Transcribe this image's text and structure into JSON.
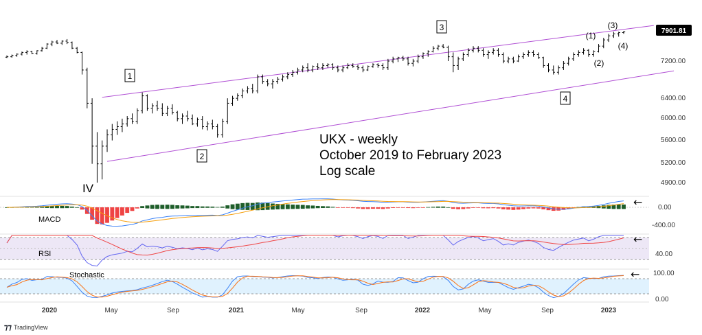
{
  "chart_data": {
    "type": "ohlc",
    "title": "",
    "price_axis": {
      "scale": "log",
      "ticks": [
        "7200.00",
        "6400.00",
        "6000.00",
        "5600.00",
        "5200.00",
        "4900.00"
      ],
      "current_price": "7901.81"
    },
    "x_axis": {
      "ticks": [
        "2020",
        "May",
        "Sep",
        "2021",
        "May",
        "Sep",
        "2022",
        "May",
        "Sep",
        "2023"
      ]
    },
    "ohlc": [
      [
        7290,
        7330,
        7270,
        7300
      ],
      [
        7300,
        7350,
        7280,
        7330
      ],
      [
        7330,
        7380,
        7300,
        7360
      ],
      [
        7360,
        7420,
        7330,
        7400
      ],
      [
        7400,
        7450,
        7350,
        7420
      ],
      [
        7420,
        7440,
        7360,
        7380
      ],
      [
        7380,
        7450,
        7350,
        7440
      ],
      [
        7440,
        7530,
        7420,
        7500
      ],
      [
        7500,
        7620,
        7480,
        7600
      ],
      [
        7600,
        7680,
        7550,
        7650
      ],
      [
        7650,
        7700,
        7600,
        7620
      ],
      [
        7620,
        7690,
        7580,
        7670
      ],
      [
        7670,
        7720,
        7600,
        7640
      ],
      [
        7640,
        7660,
        7480,
        7500
      ],
      [
        7500,
        7530,
        7380,
        7400
      ],
      [
        7400,
        7420,
        6900,
        7000
      ],
      [
        7000,
        7050,
        6200,
        6300
      ],
      [
        6300,
        6400,
        5200,
        5500
      ],
      [
        5500,
        5750,
        4900,
        5200
      ],
      [
        5200,
        5600,
        4950,
        5500
      ],
      [
        5500,
        5800,
        5400,
        5700
      ],
      [
        5700,
        5900,
        5600,
        5800
      ],
      [
        5800,
        5950,
        5700,
        5850
      ],
      [
        5850,
        6000,
        5750,
        5900
      ],
      [
        5900,
        6050,
        5850,
        6000
      ],
      [
        6000,
        6100,
        5900,
        5950
      ],
      [
        5950,
        6200,
        5900,
        6150
      ],
      [
        6150,
        6520,
        6100,
        6450
      ],
      [
        6450,
        6480,
        6150,
        6200
      ],
      [
        6200,
        6300,
        6100,
        6250
      ],
      [
        6250,
        6350,
        6150,
        6200
      ],
      [
        6200,
        6300,
        6050,
        6100
      ],
      [
        6100,
        6250,
        6050,
        6200
      ],
      [
        6200,
        6280,
        6080,
        6120
      ],
      [
        6120,
        6150,
        5950,
        6000
      ],
      [
        6000,
        6100,
        5900,
        6050
      ],
      [
        6050,
        6150,
        5950,
        6000
      ],
      [
        6000,
        6080,
        5880,
        5900
      ],
      [
        5900,
        6020,
        5850,
        5980
      ],
      [
        5980,
        6050,
        5800,
        5850
      ],
      [
        5850,
        5950,
        5780,
        5900
      ],
      [
        5900,
        5980,
        5800,
        5850
      ],
      [
        5850,
        5900,
        5650,
        5700
      ],
      [
        5700,
        6000,
        5650,
        5950
      ],
      [
        5950,
        6400,
        5900,
        6300
      ],
      [
        6300,
        6450,
        6250,
        6400
      ],
      [
        6400,
        6500,
        6350,
        6450
      ],
      [
        6450,
        6600,
        6400,
        6550
      ],
      [
        6550,
        6650,
        6500,
        6600
      ],
      [
        6600,
        6700,
        6500,
        6550
      ],
      [
        6550,
        6900,
        6500,
        6850
      ],
      [
        6850,
        6900,
        6700,
        6750
      ],
      [
        6750,
        6800,
        6650,
        6700
      ],
      [
        6700,
        6800,
        6600,
        6750
      ],
      [
        6750,
        6850,
        6700,
        6800
      ],
      [
        6800,
        6900,
        6750,
        6850
      ],
      [
        6850,
        6950,
        6800,
        6900
      ],
      [
        6900,
        7000,
        6850,
        6950
      ],
      [
        6950,
        7050,
        6900,
        7000
      ],
      [
        7000,
        7100,
        6950,
        7050
      ],
      [
        7050,
        7150,
        6950,
        7000
      ],
      [
        7000,
        7100,
        6950,
        7080
      ],
      [
        7080,
        7150,
        7000,
        7050
      ],
      [
        7050,
        7150,
        7000,
        7100
      ],
      [
        7100,
        7150,
        7050,
        7120
      ],
      [
        7120,
        7150,
        7000,
        7050
      ],
      [
        7050,
        7100,
        6950,
        7000
      ],
      [
        7000,
        7100,
        6950,
        7050
      ],
      [
        7050,
        7150,
        7020,
        7100
      ],
      [
        7100,
        7150,
        7050,
        7080
      ],
      [
        7080,
        7120,
        7000,
        7050
      ],
      [
        7050,
        7100,
        6950,
        7000
      ],
      [
        7000,
        7100,
        6980,
        7080
      ],
      [
        7080,
        7150,
        7050,
        7120
      ],
      [
        7120,
        7150,
        7050,
        7100
      ],
      [
        7100,
        7150,
        7000,
        7050
      ],
      [
        7050,
        7250,
        7000,
        7200
      ],
      [
        7200,
        7300,
        7150,
        7250
      ],
      [
        7250,
        7300,
        7180,
        7280
      ],
      [
        7280,
        7320,
        7200,
        7250
      ],
      [
        7250,
        7300,
        7100,
        7150
      ],
      [
        7150,
        7250,
        7080,
        7200
      ],
      [
        7200,
        7350,
        7150,
        7300
      ],
      [
        7300,
        7400,
        7250,
        7380
      ],
      [
        7380,
        7450,
        7300,
        7420
      ],
      [
        7420,
        7550,
        7400,
        7500
      ],
      [
        7500,
        7580,
        7450,
        7550
      ],
      [
        7550,
        7600,
        7500,
        7520
      ],
      [
        7520,
        7560,
        7200,
        7300
      ],
      [
        7300,
        7400,
        6950,
        7100
      ],
      [
        7100,
        7300,
        7000,
        7250
      ],
      [
        7250,
        7400,
        7200,
        7350
      ],
      [
        7350,
        7500,
        7300,
        7450
      ],
      [
        7450,
        7550,
        7400,
        7500
      ],
      [
        7500,
        7550,
        7400,
        7450
      ],
      [
        7450,
        7500,
        7300,
        7350
      ],
      [
        7350,
        7450,
        7250,
        7400
      ],
      [
        7400,
        7500,
        7350,
        7450
      ],
      [
        7450,
        7500,
        7300,
        7350
      ],
      [
        7350,
        7400,
        7150,
        7200
      ],
      [
        7200,
        7300,
        7150,
        7250
      ],
      [
        7250,
        7300,
        7150,
        7200
      ],
      [
        7200,
        7350,
        7180,
        7300
      ],
      [
        7300,
        7400,
        7250,
        7350
      ],
      [
        7350,
        7450,
        7300,
        7400
      ],
      [
        7400,
        7450,
        7300,
        7350
      ],
      [
        7350,
        7400,
        7250,
        7280
      ],
      [
        7280,
        7300,
        7050,
        7100
      ],
      [
        7100,
        7150,
        6950,
        7000
      ],
      [
        7000,
        7100,
        6900,
        6950
      ],
      [
        6950,
        7100,
        6900,
        7050
      ],
      [
        7050,
        7200,
        7000,
        7150
      ],
      [
        7150,
        7300,
        7100,
        7250
      ],
      [
        7250,
        7400,
        7200,
        7350
      ],
      [
        7350,
        7450,
        7300,
        7400
      ],
      [
        7400,
        7500,
        7350,
        7450
      ],
      [
        7450,
        7480,
        7300,
        7350
      ],
      [
        7350,
        7450,
        7300,
        7420
      ],
      [
        7420,
        7600,
        7400,
        7550
      ],
      [
        7550,
        7750,
        7500,
        7700
      ],
      [
        7700,
        7850,
        7650,
        7800
      ],
      [
        7800,
        7900,
        7750,
        7850
      ],
      [
        7850,
        7900,
        7780,
        7880
      ],
      [
        7880,
        7920,
        7850,
        7900
      ]
    ],
    "channel": {
      "upper": [
        {
          "week": 19,
          "price": 6420
        },
        {
          "week": 129,
          "price": 8060
        }
      ],
      "lower": [
        {
          "week": 20,
          "price": 5240
        },
        {
          "week": 133,
          "price": 6980
        }
      ]
    },
    "wave_labels": [
      {
        "text": "1",
        "boxed": true
      },
      {
        "text": "2",
        "boxed": true
      },
      {
        "text": "3",
        "boxed": true
      },
      {
        "text": "4",
        "boxed": true
      },
      {
        "text": "IV",
        "boxed": false
      },
      {
        "text": "(1)",
        "boxed": false
      },
      {
        "text": "(2)",
        "boxed": false
      },
      {
        "text": "(3)",
        "boxed": false
      },
      {
        "text": "(4)",
        "boxed": false
      }
    ],
    "annotation_lines": [
      "UKX - weekly",
      "October 2019 to February 2023",
      "Log scale"
    ],
    "panels": {
      "macd": {
        "label": "MACD",
        "ticks": [
          "0.00",
          "-400.00"
        ]
      },
      "rsi": {
        "label": "RSI",
        "ticks": [
          "40.00"
        ]
      },
      "stochastic": {
        "label": "Stochastic",
        "ticks": [
          "100.00",
          "0.00"
        ]
      }
    },
    "arrows": [
      "←",
      "←",
      "←"
    ],
    "colors": {
      "channel": "#b04fd4",
      "hist_pos": "#1e5e2a",
      "hist_neg": "#ef4444",
      "macd_line": "#3b82f6",
      "signal_line": "#f59e0b",
      "rsi_line": "#6366f1",
      "rsi_ma": "#ef4444",
      "rsi_band": "#ede7f6",
      "stoch_k": "#3b82f6",
      "stoch_d": "#f97316",
      "stoch_band": "#e0f2fe",
      "price_badge_bg": "#000000",
      "price_badge_fg": "#ffffff"
    }
  },
  "footer": {
    "brand": "TradingView"
  }
}
